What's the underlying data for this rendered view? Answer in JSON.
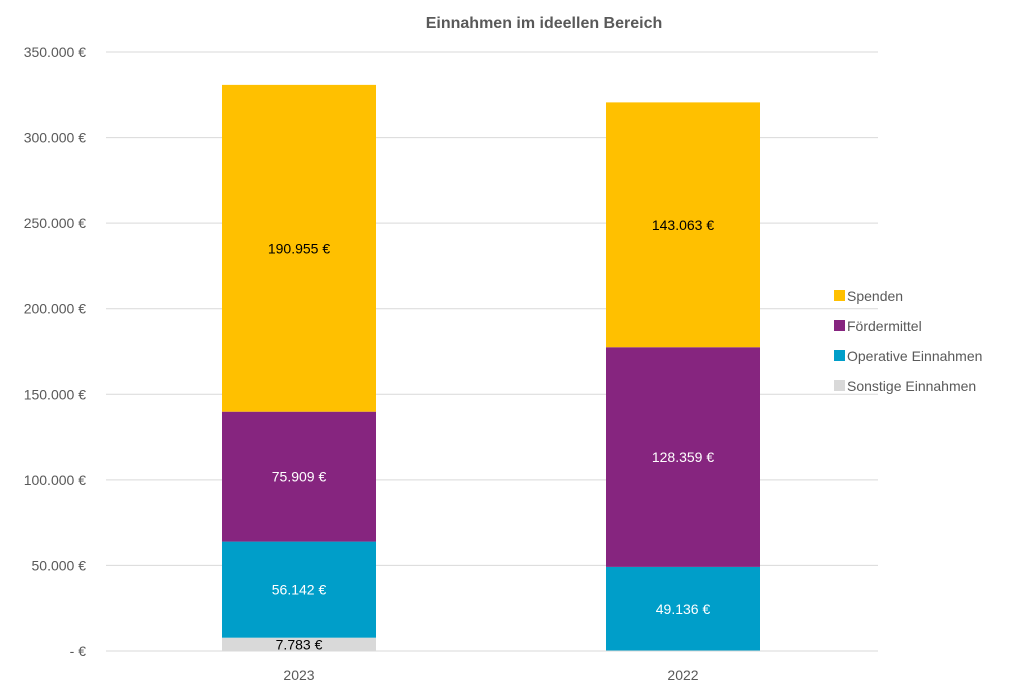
{
  "chart_data": {
    "type": "bar",
    "stacked": true,
    "title": "Einnahmen im ideellen Bereich",
    "categories": [
      "2023",
      "2022"
    ],
    "series": [
      {
        "name": "Sonstige Einnahmen",
        "values": [
          7783,
          0
        ],
        "labels": [
          "7.783 €",
          ""
        ],
        "color": "#d9d9d9",
        "label_color": "#000000"
      },
      {
        "name": "Operative Einnahmen",
        "values": [
          56142,
          49136
        ],
        "labels": [
          "56.142 €",
          "49.136 €"
        ],
        "color": "#009ec9",
        "label_color": "#ffffff"
      },
      {
        "name": "Fördermittel",
        "values": [
          75909,
          128359
        ],
        "labels": [
          "75.909 €",
          "128.359 €"
        ],
        "color": "#86257f",
        "label_color": "#ffffff"
      },
      {
        "name": "Spenden",
        "values": [
          190955,
          143063
        ],
        "labels": [
          "190.955 €",
          "143.063 €"
        ],
        "color": "#ffc000",
        "label_color": "#000000"
      }
    ],
    "legend_order": [
      "Spenden",
      "Fördermittel",
      "Operative Einnahmen",
      "Sonstige Einnahmen"
    ],
    "legend_position": "right",
    "ylim": [
      0,
      350000
    ],
    "yticks": [
      0,
      50000,
      100000,
      150000,
      200000,
      250000,
      300000,
      350000
    ],
    "ytick_labels": [
      "-  €",
      "50.000 €",
      "100.000 €",
      "150.000 €",
      "200.000 €",
      "250.000 €",
      "300.000 €",
      "350.000 €"
    ],
    "grid": true,
    "gridline_color": "#d9d9d9"
  }
}
